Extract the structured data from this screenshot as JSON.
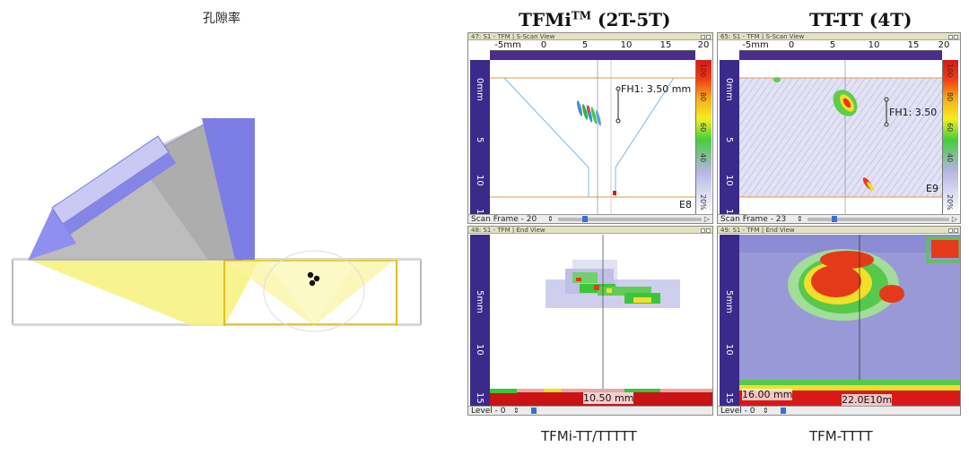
{
  "left": {
    "title": "孔隙率"
  },
  "columns": {
    "tfmi": {
      "title_main": "TFMi",
      "title_sup": "TM",
      "title_rest": " (2T-5T)",
      "caption": "TFMi-TT/TTTTT"
    },
    "tt": {
      "title": "TT-TT (4T)",
      "caption": "TFM-TTTT"
    }
  },
  "panes": {
    "sscan_left": {
      "title": "47: S1 - TFM | S-Scan View",
      "h_ticks": [
        "-5mm",
        "0",
        "5",
        "10",
        "15",
        "20"
      ],
      "v_ticks": [
        "0mm",
        "5",
        "10",
        "15"
      ],
      "cb_ticks": [
        "100",
        "80",
        "60",
        "40",
        "20%"
      ],
      "measurement": "FH1: 3.50 mm",
      "indicator": "E8",
      "status": "Scan Frame - 20"
    },
    "sscan_right": {
      "title": "65: S1 - TFM | S-Scan View",
      "h_ticks": [
        "-5mm",
        "0",
        "5",
        "10",
        "15",
        "20"
      ],
      "v_ticks": [
        "0mm",
        "5",
        "10",
        "15"
      ],
      "cb_ticks": [
        "100",
        "80",
        "60",
        "40",
        "20%"
      ],
      "measurement": "FH1: 3.50",
      "indicator": "E9",
      "status": "Scan Frame - 23"
    },
    "end_left": {
      "title": "48: S1 - TFM | End View",
      "v_ticks": [
        "5mm",
        "10",
        "15"
      ],
      "readout": "10.50 mm",
      "status": "Level - 0"
    },
    "end_right": {
      "title": "49: S1 - TFM | End View",
      "v_ticks": [
        "5mm",
        "10",
        "15"
      ],
      "readout_left": "16.00 mm",
      "readout_right": "22.0E10m",
      "status": "Level - 0"
    }
  },
  "colors": {
    "wedge": "#8f8ff0",
    "wedge_dark": "#6f6fd8",
    "beam": "#f5f07a",
    "ruler": "#4b2d8e",
    "red": "#d81818",
    "green": "#3fcb3c",
    "lavender": "#b5b5e2"
  }
}
